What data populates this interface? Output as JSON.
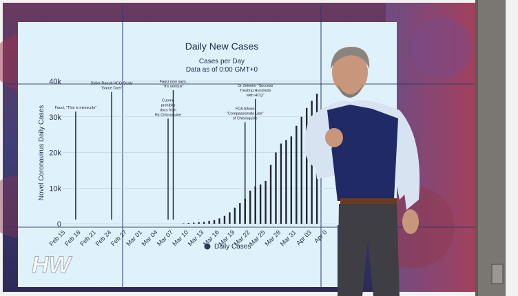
{
  "chart_data": {
    "type": "bar",
    "title": "Daily New Cases",
    "subtitle_lines": [
      "Cases per Day",
      "Data as of 0:00 GMT+0"
    ],
    "ylabel": "Novel Coronavirus Daily Cases",
    "ylim": [
      0,
      40000
    ],
    "y_ticks": [
      "0",
      "10k",
      "20k",
      "30k",
      "40k"
    ],
    "x_tick_labels": [
      "Feb 15",
      "Feb 18",
      "Feb 21",
      "Feb 24",
      "Feb 27",
      "Mar 01",
      "Mar 04",
      "Mar 07",
      "Mar 10",
      "Mar 13",
      "Mar 16",
      "Mar 19",
      "Mar 22",
      "Mar 25",
      "Mar 28",
      "Mar 31",
      "Apr 03",
      "Apr 0"
    ],
    "legend": "Daily Cases",
    "grid": true,
    "series": [
      {
        "name": "Daily Cases",
        "dates": [
          "Mar 09",
          "Mar 10",
          "Mar 11",
          "Mar 12",
          "Mar 13",
          "Mar 14",
          "Mar 15",
          "Mar 16",
          "Mar 17",
          "Mar 18",
          "Mar 19",
          "Mar 20",
          "Mar 21",
          "Mar 22",
          "Mar 23",
          "Mar 24",
          "Mar 25",
          "Mar 26",
          "Mar 27",
          "Mar 28",
          "Mar 29",
          "Mar 30",
          "Mar 31",
          "Apr 01",
          "Apr 02",
          "Apr 03",
          "Apr 04"
        ],
        "values": [
          100,
          200,
          300,
          400,
          500,
          800,
          1000,
          1500,
          2200,
          3200,
          4500,
          5800,
          7000,
          9300,
          10500,
          11000,
          12000,
          16500,
          20000,
          22500,
          23500,
          24500,
          27500,
          30000,
          32500,
          34500,
          36500
        ]
      }
    ],
    "annotations": [
      {
        "date": "Feb 17",
        "value": 31500,
        "lines": [
          "Fauci, \"This is miniscule\""
        ]
      },
      {
        "date": "Feb 24",
        "value": 37000,
        "lines": [
          "Didier Raoult HCQ Study",
          "\"Game Over\""
        ]
      },
      {
        "date": "Mar 06",
        "value": 29500,
        "lines": [
          "Cuomo",
          "prohibits",
          "docs from",
          "Rx Chloroquine"
        ]
      },
      {
        "date": "Mar 07",
        "value": 37500,
        "lines": [
          "Fauci now says,",
          "\"It's serious\""
        ]
      },
      {
        "date": "Mar 21",
        "value": 28500,
        "lines": [
          "FDA Allows",
          "\"Compassionate Use\"",
          "of Chloroquine"
        ]
      },
      {
        "date": "Mar 23",
        "value": 35000,
        "lines": [
          "Dr Zelenko \"Success",
          "Treating Hundreds",
          "with HCQ\""
        ]
      }
    ]
  },
  "logo": {
    "text": "HW"
  },
  "colors": {
    "screen": "#d7eef8",
    "bars": "#1f2733",
    "accent": "#2d5fb8"
  }
}
